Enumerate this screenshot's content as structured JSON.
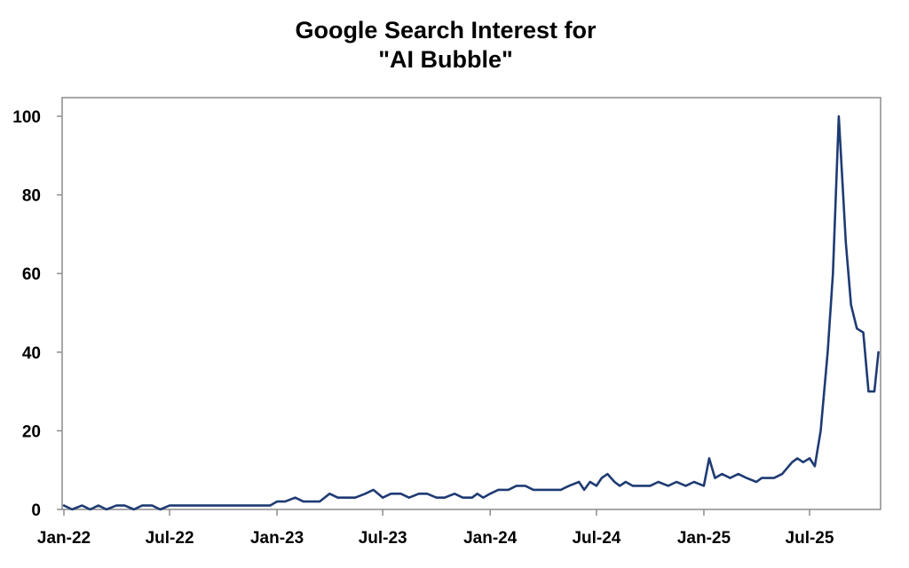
{
  "chart_data": {
    "type": "line",
    "title_lines": [
      "Google Search Interest for",
      "\"AI Bubble\""
    ],
    "xlabel": "",
    "ylabel": "",
    "ylim": [
      0,
      105
    ],
    "yticks": [
      0,
      20,
      40,
      60,
      80,
      100
    ],
    "xticks": [
      "Jan-22",
      "Jul-22",
      "Jan-23",
      "Jul-23",
      "Jan-24",
      "Jul-24",
      "Jan-25",
      "Jul-25"
    ],
    "grid": false,
    "legend": "none",
    "line_color": "#1f3b73",
    "series": [
      {
        "x": [
          "2022-01-01",
          "2022-01-15",
          "2022-02-01",
          "2022-02-15",
          "2022-03-01",
          "2022-03-15",
          "2022-04-01",
          "2022-04-15",
          "2022-05-01",
          "2022-05-15",
          "2022-06-01",
          "2022-06-15",
          "2022-07-01",
          "2022-08-01",
          "2022-09-01",
          "2022-10-01",
          "2022-11-01",
          "2022-12-01",
          "2022-12-20",
          "2023-01-01",
          "2023-01-15",
          "2023-02-01",
          "2023-02-15",
          "2023-03-01",
          "2023-03-15",
          "2023-04-01",
          "2023-04-15",
          "2023-05-01",
          "2023-05-15",
          "2023-06-01",
          "2023-06-15",
          "2023-07-01",
          "2023-07-15",
          "2023-08-01",
          "2023-08-15",
          "2023-09-01",
          "2023-09-15",
          "2023-10-01",
          "2023-10-15",
          "2023-11-01",
          "2023-11-15",
          "2023-12-01",
          "2023-12-10",
          "2023-12-20",
          "2024-01-01",
          "2024-01-15",
          "2024-02-01",
          "2024-02-15",
          "2024-03-01",
          "2024-03-15",
          "2024-04-01",
          "2024-04-15",
          "2024-05-01",
          "2024-05-15",
          "2024-06-01",
          "2024-06-10",
          "2024-06-20",
          "2024-07-01",
          "2024-07-10",
          "2024-07-20",
          "2024-08-01",
          "2024-08-10",
          "2024-08-20",
          "2024-09-01",
          "2024-09-15",
          "2024-10-01",
          "2024-10-15",
          "2024-11-01",
          "2024-11-15",
          "2024-12-01",
          "2024-12-15",
          "2025-01-01",
          "2025-01-10",
          "2025-01-20",
          "2025-02-01",
          "2025-02-15",
          "2025-03-01",
          "2025-03-15",
          "2025-04-01",
          "2025-04-10",
          "2025-04-20",
          "2025-05-01",
          "2025-05-15",
          "2025-06-01",
          "2025-06-10",
          "2025-06-20",
          "2025-07-01",
          "2025-07-10",
          "2025-07-20",
          "2025-08-01",
          "2025-08-10",
          "2025-08-20",
          "2025-09-01",
          "2025-09-10",
          "2025-09-20",
          "2025-10-01",
          "2025-10-10",
          "2025-10-20",
          "2025-10-27"
        ],
        "values": [
          1,
          0,
          1,
          0,
          1,
          0,
          1,
          1,
          0,
          1,
          1,
          0,
          1,
          1,
          1,
          1,
          1,
          1,
          1,
          2,
          2,
          3,
          2,
          2,
          2,
          4,
          3,
          3,
          3,
          4,
          5,
          3,
          4,
          4,
          3,
          4,
          4,
          3,
          3,
          4,
          3,
          3,
          4,
          3,
          4,
          5,
          5,
          6,
          6,
          5,
          5,
          5,
          5,
          6,
          7,
          5,
          7,
          6,
          8,
          9,
          7,
          6,
          7,
          6,
          6,
          6,
          7,
          6,
          7,
          6,
          7,
          6,
          13,
          8,
          9,
          8,
          9,
          8,
          7,
          8,
          8,
          8,
          9,
          12,
          13,
          12,
          13,
          11,
          20,
          40,
          60,
          100,
          68,
          52,
          46,
          45,
          30,
          30,
          40
        ]
      }
    ]
  }
}
